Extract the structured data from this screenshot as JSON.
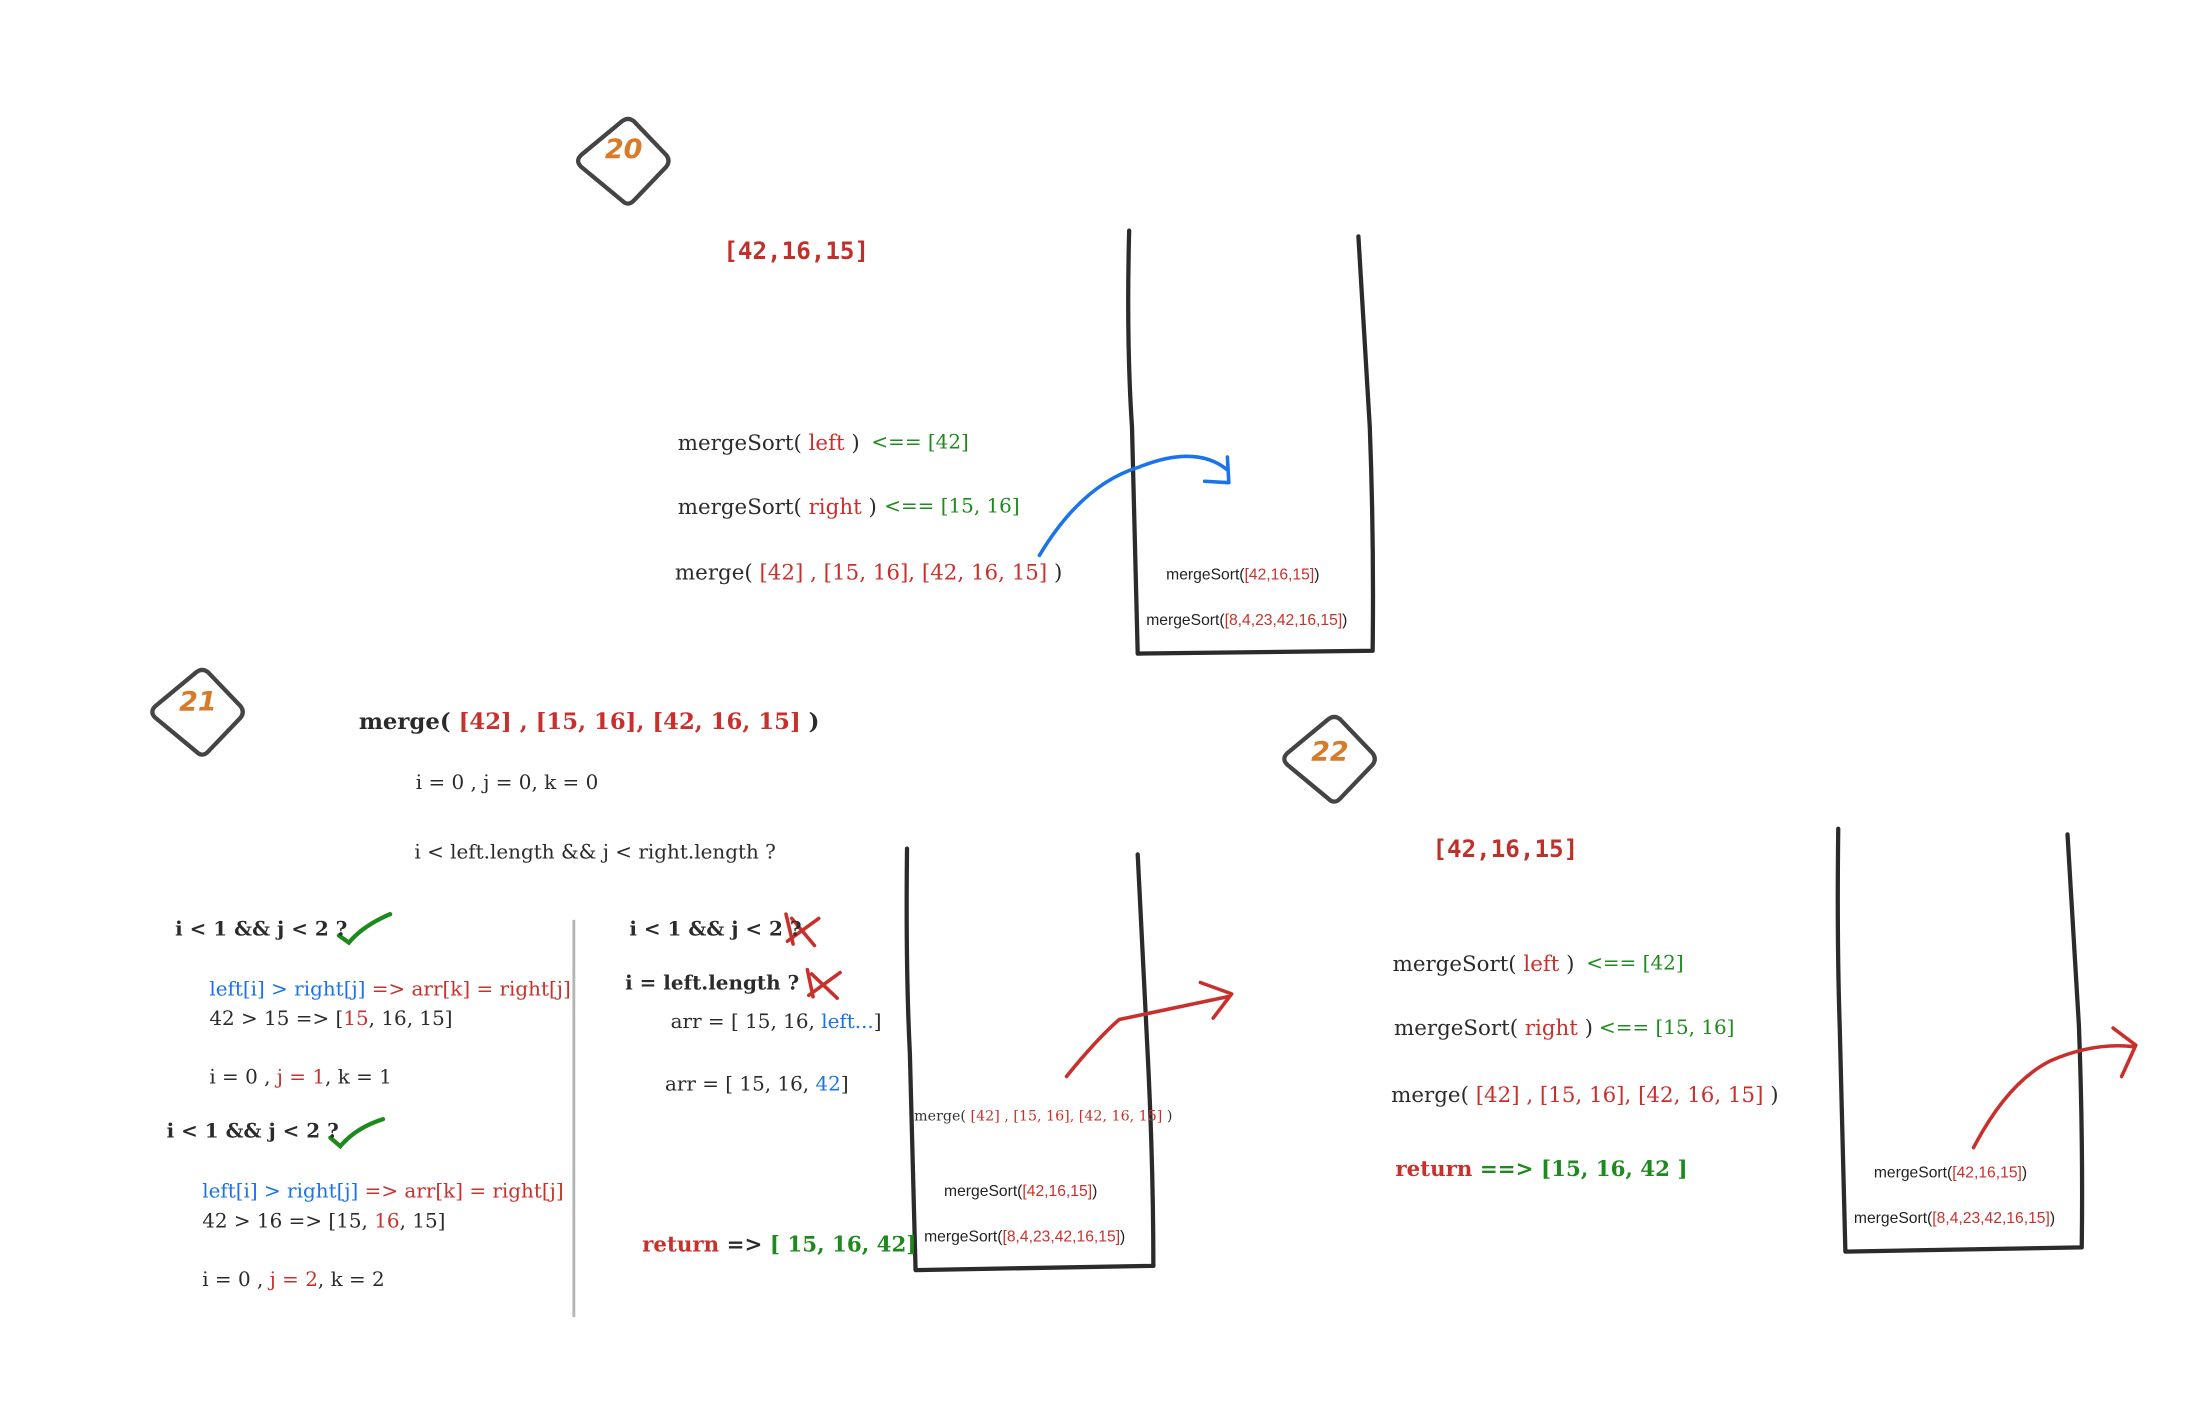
{
  "badges": {
    "b20": "20",
    "b21": "21",
    "b22": "22"
  },
  "step20": {
    "array": "[42,16,15]",
    "line1": {
      "call": "mergeSort(",
      "arg": " left ",
      "close": ")",
      "result": "<== [42]"
    },
    "line2": {
      "call": "mergeSort(",
      "arg": " right ",
      "close": ")",
      "result": "<== [15, 16]"
    },
    "line3": {
      "call": "merge(",
      "a1": " [42] , [15, 16], [42, 16, 15] ",
      "close": ")"
    },
    "stack": [
      {
        "call": "mergeSort(",
        "arg": "[42,16,15]",
        "close": ")"
      },
      {
        "call": "mergeSort(",
        "arg": "[8,4,23,42,16,15]",
        "close": ")"
      }
    ]
  },
  "step21": {
    "header": {
      "call": "merge(",
      "args": " [42] , [15, 16], [42, 16, 15] ",
      "close": ")"
    },
    "init": "i = 0 , j = 0, k = 0",
    "condition": "i < left.length && j < right.length ?",
    "left_col": {
      "cond1": "i < 1 && j < 2 ?",
      "cmp1": "left[i] > right[j]",
      "arrow1": " => arr[k] = right[j]",
      "eval1a": "42 > 15 => [",
      "eval1b": "15",
      "eval1c": ", 16, 15]",
      "idx1a": "i = 0 , ",
      "idx1b": "j = 1",
      "idx1c": ", k = 1",
      "cond2": "i < 1 && j < 2 ?",
      "cmp2": "left[i] > right[j]",
      "arrow2": " => arr[k] = right[j]",
      "eval2a": "42 > 16 => [15, ",
      "eval2b": "16",
      "eval2c": ", 15]",
      "idx2a": "i = 0 , ",
      "idx2b": "j = 2",
      "idx2c": ", k = 2"
    },
    "right_col": {
      "cond": "i < 1 && j < 2 ?",
      "cond_len": "i  = left.length ?",
      "arr1a": "arr = [ 15, 16, ",
      "arr1b": "left...",
      "arr1c": "]",
      "arr2a": "arr = [ 15, 16, ",
      "arr2b": "42",
      "arr2c": "]",
      "return_kw": "return",
      "return_arrow": " => ",
      "return_val": "[ 15, 16, 42]"
    },
    "stack": [
      {
        "call": "merge( ",
        "args": "[42] , [15, 16], [42, 16, 15]",
        "close": " )"
      },
      {
        "call": "mergeSort(",
        "arg": "[42,16,15]",
        "close": ")"
      },
      {
        "call": "mergeSort(",
        "arg": "[8,4,23,42,16,15]",
        "close": ")"
      }
    ]
  },
  "step22": {
    "array": "[42,16,15]",
    "line1": {
      "call": "mergeSort(",
      "arg": " left ",
      "close": ")",
      "result": "<== [42]"
    },
    "line2": {
      "call": "mergeSort(",
      "arg": " right ",
      "close": ")",
      "result": "<== [15, 16]"
    },
    "line3": {
      "call": "merge(",
      "a1": " [42] , [15, 16], [42, 16, 15] ",
      "close": ")"
    },
    "return_kw": "return",
    "return_val": " ==> [15, 16, 42 ]",
    "stack": [
      {
        "call": "mergeSort(",
        "arg": "[42,16,15]",
        "close": ")"
      },
      {
        "call": "mergeSort(",
        "arg": "[8,4,23,42,16,15]",
        "close": ")"
      }
    ]
  },
  "colors": {
    "red": "#c9302c",
    "green": "#1c8a1c",
    "blue": "#1a73e8",
    "badge": "#d97a28",
    "stroke": "#2b2b2b"
  }
}
